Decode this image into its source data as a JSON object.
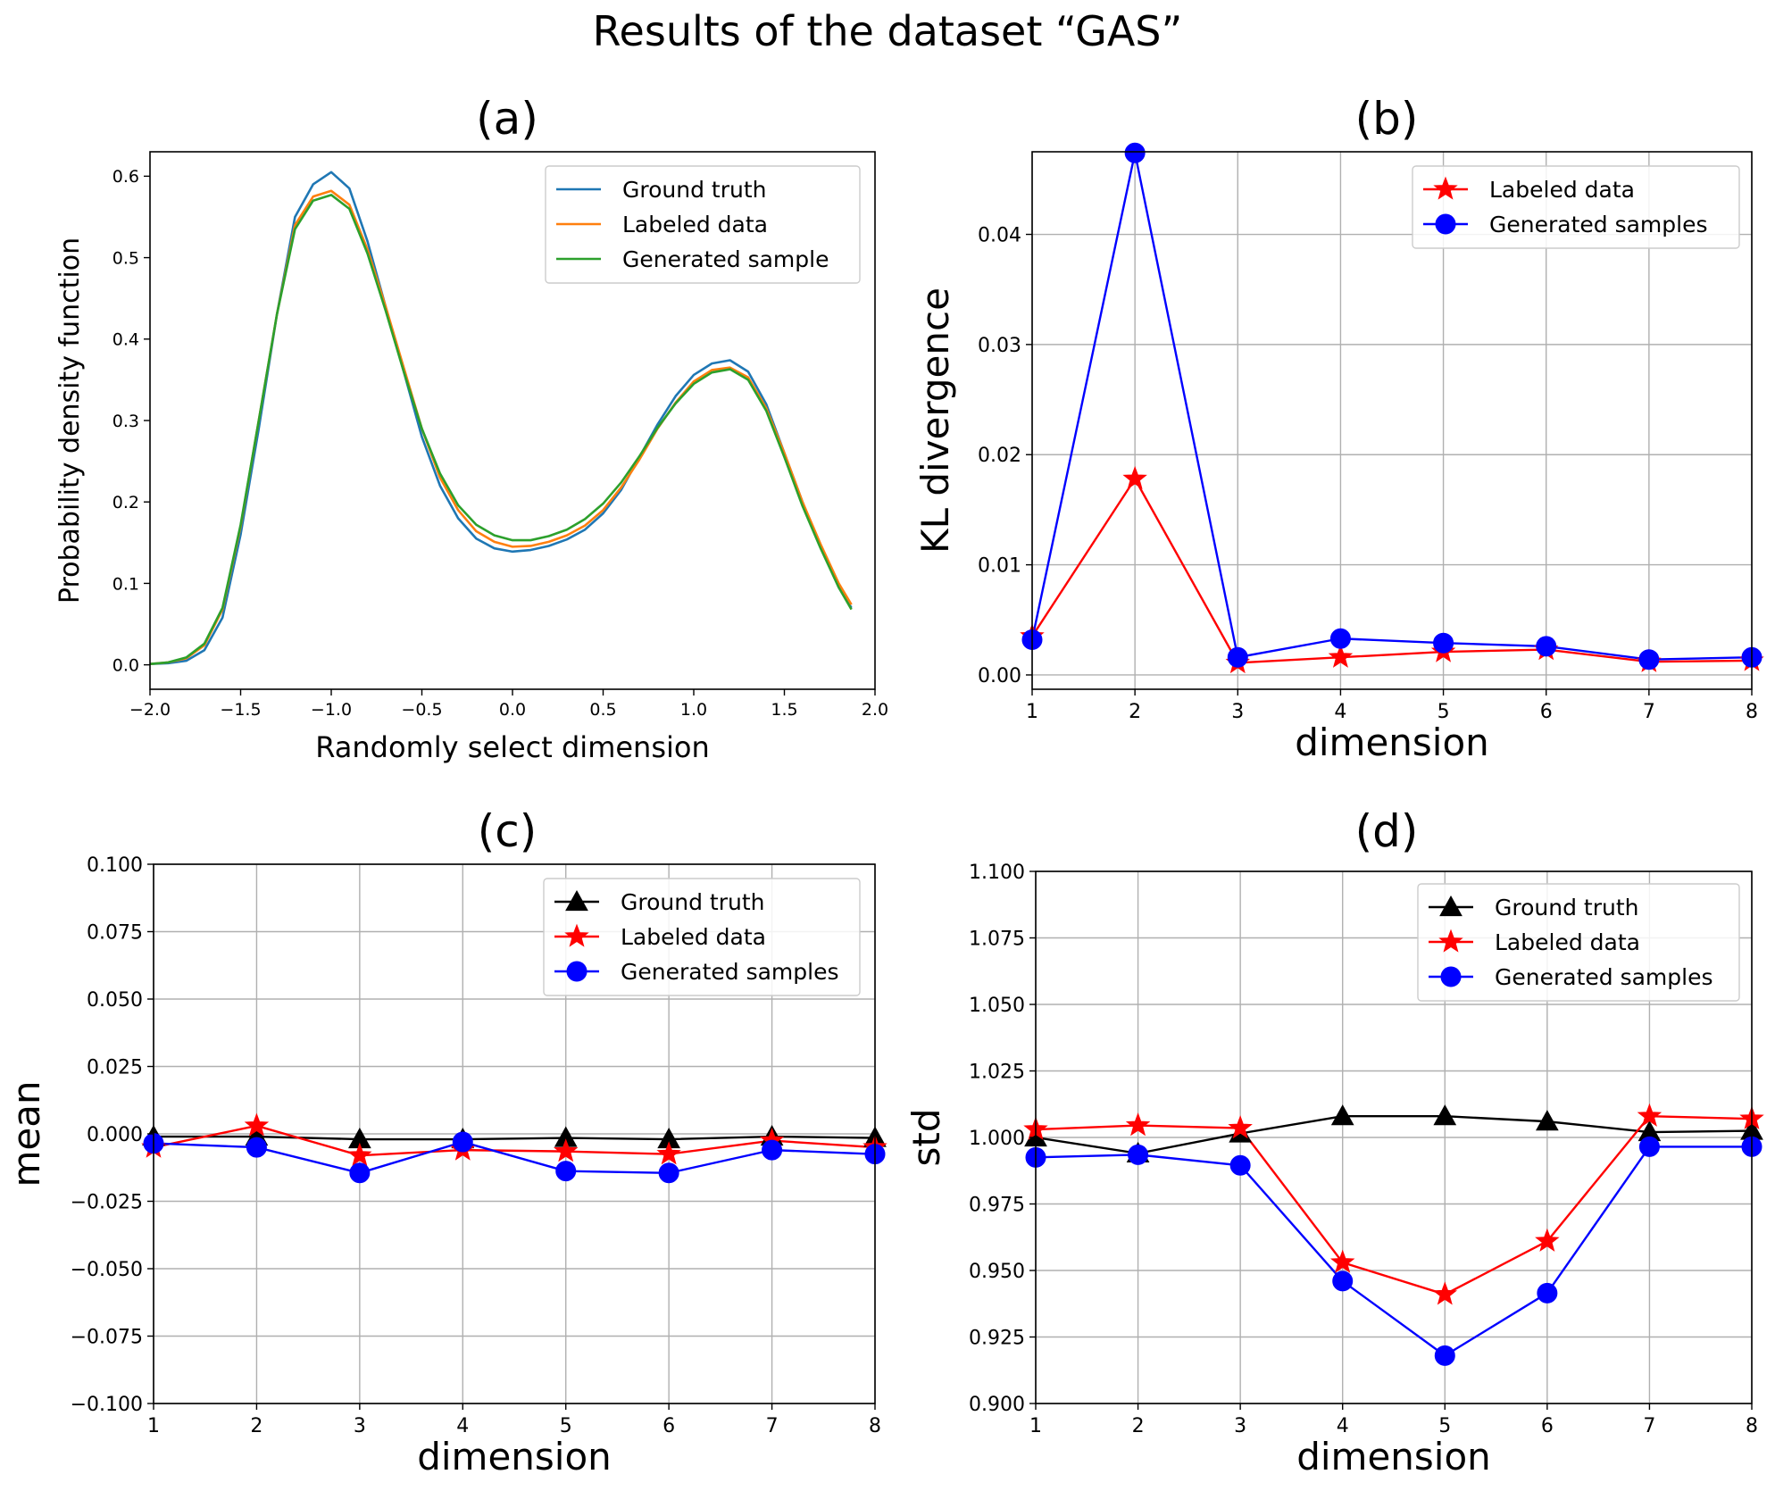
{
  "title": "Results of the dataset “GAS”",
  "colors": {
    "blue_tab": "#1f77b4",
    "orange_tab": "#ff7f0e",
    "green_tab": "#2ca02c",
    "red": "#ff0000",
    "blue": "#0000ff",
    "black": "#000000",
    "grid": "#b0b0b0"
  },
  "chart_data": [
    {
      "id": "a",
      "panel_label": "(a)",
      "type": "line",
      "xlabel": "Randomly select dimension",
      "ylabel": "Probability density function",
      "xlim": [
        -2.0,
        2.0
      ],
      "ylim": [
        -0.03,
        0.63
      ],
      "grid": false,
      "legend_position": "top-right",
      "xticks": [
        -2.0,
        -1.5,
        -1.0,
        -0.5,
        0.0,
        0.5,
        1.0,
        1.5,
        2.0
      ],
      "xtick_labels": [
        "−2.0",
        "−1.5",
        "−1.0",
        "−0.5",
        "0.0",
        "0.5",
        "1.0",
        "1.5",
        "2.0"
      ],
      "yticks": [
        0.0,
        0.1,
        0.2,
        0.3,
        0.4,
        0.5,
        0.6
      ],
      "ytick_labels": [
        "0.0",
        "0.1",
        "0.2",
        "0.3",
        "0.4",
        "0.5",
        "0.6"
      ],
      "series": [
        {
          "name": "Ground truth",
          "color": "#1f77b4",
          "marker": "none",
          "x": [
            -2.0,
            -1.9,
            -1.8,
            -1.7,
            -1.6,
            -1.5,
            -1.4,
            -1.3,
            -1.2,
            -1.1,
            -1.0,
            -0.9,
            -0.8,
            -0.7,
            -0.6,
            -0.5,
            -0.4,
            -0.3,
            -0.2,
            -0.1,
            0.0,
            0.1,
            0.2,
            0.3,
            0.4,
            0.5,
            0.6,
            0.7,
            0.8,
            0.9,
            1.0,
            1.1,
            1.2,
            1.3,
            1.4,
            1.5,
            1.6,
            1.7,
            1.8,
            1.87
          ],
          "y": [
            0.001,
            0.002,
            0.005,
            0.018,
            0.058,
            0.16,
            0.29,
            0.43,
            0.55,
            0.59,
            0.605,
            0.585,
            0.52,
            0.44,
            0.36,
            0.28,
            0.22,
            0.18,
            0.155,
            0.143,
            0.139,
            0.141,
            0.146,
            0.154,
            0.166,
            0.186,
            0.215,
            0.255,
            0.295,
            0.33,
            0.356,
            0.37,
            0.374,
            0.36,
            0.32,
            0.26,
            0.2,
            0.145,
            0.095,
            0.07
          ]
        },
        {
          "name": "Labeled data",
          "color": "#ff7f0e",
          "marker": "none",
          "x": [
            -2.0,
            -1.9,
            -1.8,
            -1.7,
            -1.6,
            -1.5,
            -1.4,
            -1.3,
            -1.2,
            -1.1,
            -1.0,
            -0.9,
            -0.8,
            -0.7,
            -0.6,
            -0.5,
            -0.4,
            -0.3,
            -0.2,
            -0.1,
            0.0,
            0.1,
            0.2,
            0.3,
            0.4,
            0.5,
            0.6,
            0.7,
            0.8,
            0.9,
            1.0,
            1.1,
            1.2,
            1.3,
            1.4,
            1.5,
            1.6,
            1.7,
            1.8,
            1.87
          ],
          "y": [
            0.001,
            0.003,
            0.008,
            0.024,
            0.068,
            0.17,
            0.3,
            0.43,
            0.54,
            0.575,
            0.582,
            0.565,
            0.51,
            0.44,
            0.365,
            0.29,
            0.23,
            0.19,
            0.164,
            0.151,
            0.145,
            0.146,
            0.151,
            0.159,
            0.171,
            0.19,
            0.218,
            0.252,
            0.29,
            0.322,
            0.348,
            0.362,
            0.365,
            0.353,
            0.315,
            0.26,
            0.2,
            0.148,
            0.1,
            0.074
          ]
        },
        {
          "name": "Generated sample",
          "color": "#2ca02c",
          "marker": "none",
          "x": [
            -2.0,
            -1.9,
            -1.8,
            -1.7,
            -1.6,
            -1.5,
            -1.4,
            -1.3,
            -1.2,
            -1.1,
            -1.0,
            -0.9,
            -0.8,
            -0.7,
            -0.6,
            -0.5,
            -0.4,
            -0.3,
            -0.2,
            -0.1,
            0.0,
            0.1,
            0.2,
            0.3,
            0.4,
            0.5,
            0.6,
            0.7,
            0.8,
            0.9,
            1.0,
            1.1,
            1.2,
            1.3,
            1.4,
            1.5,
            1.6,
            1.7,
            1.8,
            1.87
          ],
          "y": [
            0.001,
            0.003,
            0.009,
            0.026,
            0.07,
            0.172,
            0.3,
            0.43,
            0.535,
            0.57,
            0.577,
            0.56,
            0.505,
            0.435,
            0.36,
            0.29,
            0.235,
            0.196,
            0.172,
            0.159,
            0.153,
            0.153,
            0.158,
            0.166,
            0.179,
            0.198,
            0.224,
            0.256,
            0.291,
            0.321,
            0.345,
            0.359,
            0.363,
            0.35,
            0.312,
            0.255,
            0.195,
            0.143,
            0.095,
            0.068
          ]
        }
      ]
    },
    {
      "id": "b",
      "panel_label": "(b)",
      "type": "line",
      "xlabel": "dimension",
      "ylabel": "KL divergence",
      "xlim": [
        1,
        8
      ],
      "ylim": [
        -0.0013,
        0.0475
      ],
      "grid": true,
      "legend_position": "top-right",
      "xticks": [
        1,
        2,
        3,
        4,
        5,
        6,
        7,
        8
      ],
      "xtick_labels": [
        "1",
        "2",
        "3",
        "4",
        "5",
        "6",
        "7",
        "8"
      ],
      "yticks": [
        0.0,
        0.01,
        0.02,
        0.03,
        0.04
      ],
      "ytick_labels": [
        "0.00",
        "0.01",
        "0.02",
        "0.03",
        "0.04"
      ],
      "series": [
        {
          "name": "Labeled data",
          "color": "#ff0000",
          "marker": "star",
          "x": [
            1,
            2,
            3,
            4,
            5,
            6,
            7,
            8
          ],
          "y": [
            0.0035,
            0.0178,
            0.0011,
            0.0016,
            0.0021,
            0.0023,
            0.0012,
            0.0013
          ]
        },
        {
          "name": "Generated samples",
          "color": "#0000ff",
          "marker": "circle",
          "x": [
            1,
            2,
            3,
            4,
            5,
            6,
            7,
            8
          ],
          "y": [
            0.0032,
            0.0474,
            0.0016,
            0.0033,
            0.0029,
            0.0026,
            0.0014,
            0.0016
          ]
        }
      ]
    },
    {
      "id": "c",
      "panel_label": "(c)",
      "type": "line",
      "xlabel": "dimension",
      "ylabel": "mean",
      "xlim": [
        1,
        8
      ],
      "ylim": [
        -0.1,
        0.1
      ],
      "grid": true,
      "legend_position": "top-right",
      "xticks": [
        1,
        2,
        3,
        4,
        5,
        6,
        7,
        8
      ],
      "xtick_labels": [
        "1",
        "2",
        "3",
        "4",
        "5",
        "6",
        "7",
        "8"
      ],
      "yticks": [
        -0.1,
        -0.075,
        -0.05,
        -0.025,
        0.0,
        0.025,
        0.05,
        0.075,
        0.1
      ],
      "ytick_labels": [
        "−0.100",
        "−0.075",
        "−0.050",
        "−0.025",
        "0.000",
        "0.025",
        "0.050",
        "0.075",
        "0.100"
      ],
      "series": [
        {
          "name": "Ground truth",
          "color": "#000000",
          "marker": "triangle",
          "x": [
            1,
            2,
            3,
            4,
            5,
            6,
            7,
            8
          ],
          "y": [
            -0.001,
            -0.001,
            -0.002,
            -0.002,
            -0.0015,
            -0.002,
            -0.001,
            -0.0015
          ]
        },
        {
          "name": "Labeled data",
          "color": "#ff0000",
          "marker": "star",
          "x": [
            1,
            2,
            3,
            4,
            5,
            6,
            7,
            8
          ],
          "y": [
            -0.005,
            0.003,
            -0.008,
            -0.006,
            -0.0065,
            -0.0075,
            -0.0025,
            -0.005
          ]
        },
        {
          "name": "Generated samples",
          "color": "#0000ff",
          "marker": "circle",
          "x": [
            1,
            2,
            3,
            4,
            5,
            6,
            7,
            8
          ],
          "y": [
            -0.0035,
            -0.005,
            -0.0145,
            -0.003,
            -0.0138,
            -0.0145,
            -0.006,
            -0.0075
          ]
        }
      ]
    },
    {
      "id": "d",
      "panel_label": "(d)",
      "type": "line",
      "xlabel": "dimension",
      "ylabel": "std",
      "xlim": [
        1,
        8
      ],
      "ylim": [
        0.9,
        1.1
      ],
      "grid": true,
      "legend_position": "top-right",
      "xticks": [
        1,
        2,
        3,
        4,
        5,
        6,
        7,
        8
      ],
      "xtick_labels": [
        "1",
        "2",
        "3",
        "4",
        "5",
        "6",
        "7",
        "8"
      ],
      "yticks": [
        0.9,
        0.925,
        0.95,
        0.975,
        1.0,
        1.025,
        1.05,
        1.075,
        1.1
      ],
      "ytick_labels": [
        "0.900",
        "0.925",
        "0.950",
        "0.975",
        "1.000",
        "1.025",
        "1.050",
        "1.075",
        "1.100"
      ],
      "series": [
        {
          "name": "Ground truth",
          "color": "#000000",
          "marker": "triangle",
          "x": [
            1,
            2,
            3,
            4,
            5,
            6,
            7,
            8
          ],
          "y": [
            1.0,
            0.994,
            1.0015,
            1.008,
            1.008,
            1.006,
            1.002,
            1.0025
          ]
        },
        {
          "name": "Labeled data",
          "color": "#ff0000",
          "marker": "star",
          "x": [
            1,
            2,
            3,
            4,
            5,
            6,
            7,
            8
          ],
          "y": [
            1.003,
            1.0045,
            1.0035,
            0.953,
            0.941,
            0.961,
            1.008,
            1.007
          ]
        },
        {
          "name": "Generated samples",
          "color": "#0000ff",
          "marker": "circle",
          "x": [
            1,
            2,
            3,
            4,
            5,
            6,
            7,
            8
          ],
          "y": [
            0.9925,
            0.9935,
            0.9895,
            0.946,
            0.918,
            0.9415,
            0.9965,
            0.9965
          ]
        }
      ]
    }
  ]
}
